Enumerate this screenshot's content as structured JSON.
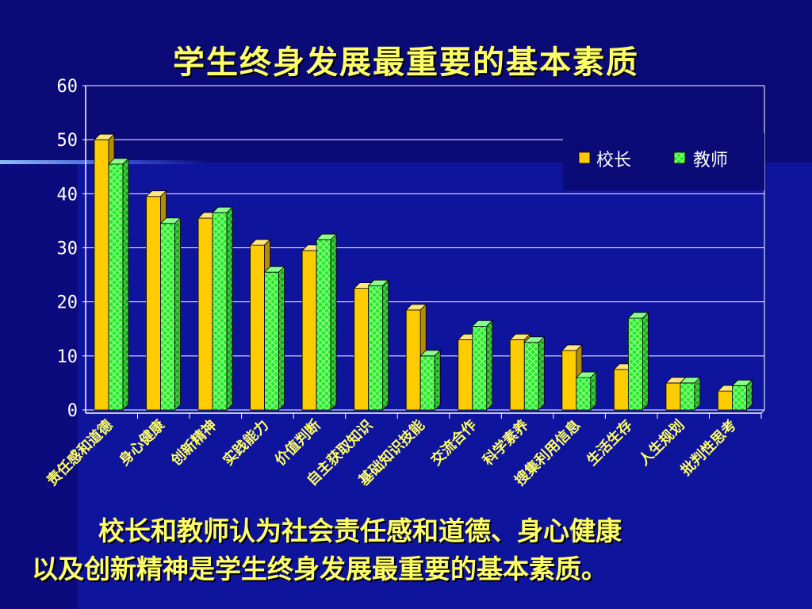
{
  "slide": {
    "title": "学生终身发展最重要的基本素质",
    "caption_line1": "校长和教师认为社会责任感和道德、身心健康",
    "caption_line2": "以及创新精神是学生终身发展最重要的基本素质。"
  },
  "colors": {
    "principal": "#ffcc00",
    "teacher": "#22ee22",
    "text": "#ffff66",
    "axis": "#ffffff"
  },
  "chart_data": {
    "type": "bar",
    "categories": [
      "责任感和道德",
      "身心健康",
      "创新精神",
      "实践能力",
      "价值判断",
      "自主获取知识",
      "基础知识技能",
      "交流合作",
      "科学素养",
      "搜集利用信息",
      "生活生存",
      "人生规划",
      "批判性思考"
    ],
    "series": [
      {
        "name": "校长",
        "values": [
          50,
          39.5,
          35.5,
          30.5,
          29.5,
          22.5,
          18.5,
          13,
          13,
          11,
          7.5,
          5,
          3.5
        ]
      },
      {
        "name": "教师",
        "values": [
          45.5,
          34.5,
          36.5,
          25.5,
          31.5,
          23,
          10,
          15.5,
          12.5,
          6,
          17,
          5,
          4.5
        ]
      }
    ],
    "yticks": [
      "0",
      "10",
      "20",
      "30",
      "40",
      "50",
      "60"
    ],
    "ylim": [
      0,
      60
    ],
    "grid": true,
    "legend_position": "top-right"
  }
}
